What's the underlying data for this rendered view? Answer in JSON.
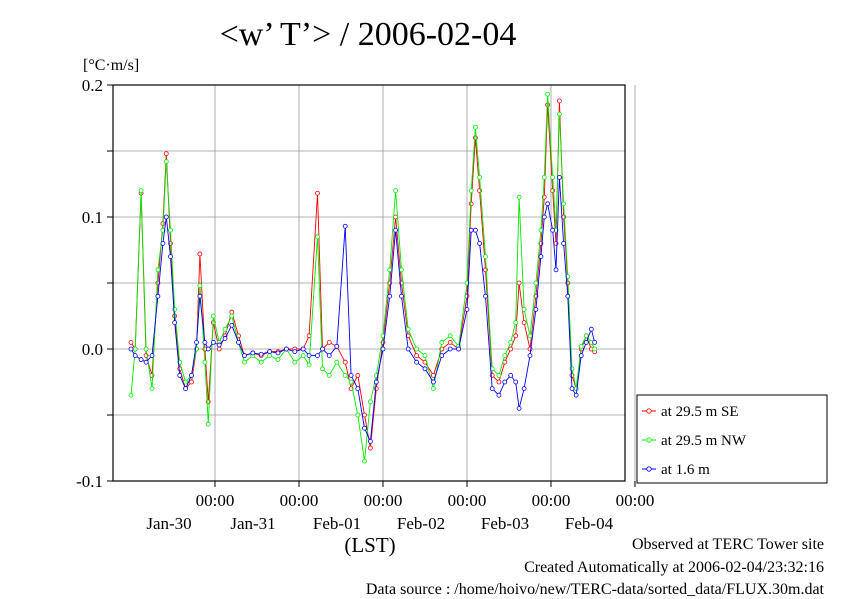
{
  "chart_data": {
    "type": "line",
    "title": "<w’ T’> / 2006-02-04",
    "unit": "[°C·m/s]",
    "xlabel": "(LST)",
    "ylim": [
      -0.1,
      0.2
    ],
    "y_ticks": [
      {
        "value": 0.2,
        "label": "0.2"
      },
      {
        "value": 0.1,
        "label": "0.1"
      },
      {
        "value": 0.0,
        "label": "0.0"
      },
      {
        "value": -0.1,
        "label": "-0.1"
      }
    ],
    "x_range_days": [
      0,
      6.0
    ],
    "x_ticks": [
      {
        "day": 1,
        "time": "00:00",
        "date": "Jan-30"
      },
      {
        "day": 2,
        "time": "00:00",
        "date": "Jan-31"
      },
      {
        "day": 3,
        "time": "00:00",
        "date": "Feb-01"
      },
      {
        "day": 4,
        "time": "00:00",
        "date": "Feb-02"
      },
      {
        "day": 5,
        "time": "00:00",
        "date": "Feb-03"
      },
      {
        "day": 6,
        "time": "00:00",
        "date": "Feb-04"
      }
    ],
    "grid": true,
    "legend_position": "right",
    "series": [
      {
        "name": "at 29.5 m SE",
        "color": "#ff0000",
        "points": [
          [
            0.0,
            0.005
          ],
          [
            0.05,
            0.0
          ],
          [
            0.12,
            0.118
          ],
          [
            0.18,
            -0.005
          ],
          [
            0.25,
            -0.02
          ],
          [
            0.32,
            0.05
          ],
          [
            0.38,
            0.095
          ],
          [
            0.42,
            0.148
          ],
          [
            0.47,
            0.08
          ],
          [
            0.52,
            0.025
          ],
          [
            0.58,
            -0.015
          ],
          [
            0.65,
            -0.03
          ],
          [
            0.72,
            -0.025
          ],
          [
            0.78,
            0.0
          ],
          [
            0.82,
            0.072
          ],
          [
            0.88,
            0.0
          ],
          [
            0.92,
            -0.04
          ],
          [
            0.98,
            0.02
          ],
          [
            1.05,
            0.0
          ],
          [
            1.12,
            0.01
          ],
          [
            1.2,
            0.028
          ],
          [
            1.28,
            0.01
          ],
          [
            1.35,
            -0.005
          ],
          [
            1.45,
            -0.003
          ],
          [
            1.55,
            -0.005
          ],
          [
            1.65,
            -0.002
          ],
          [
            1.75,
            -0.002
          ],
          [
            1.85,
            0.0
          ],
          [
            1.95,
            0.0
          ],
          [
            2.05,
            0.0
          ],
          [
            2.12,
            0.01
          ],
          [
            2.22,
            0.118
          ],
          [
            2.28,
            0.0
          ],
          [
            2.36,
            0.005
          ],
          [
            2.45,
            0.002
          ],
          [
            2.55,
            -0.01
          ],
          [
            2.62,
            -0.03
          ],
          [
            2.7,
            -0.02
          ],
          [
            2.78,
            -0.05
          ],
          [
            2.85,
            -0.075
          ],
          [
            2.92,
            -0.03
          ],
          [
            3.0,
            0.005
          ],
          [
            3.08,
            0.05
          ],
          [
            3.15,
            0.1
          ],
          [
            3.22,
            0.05
          ],
          [
            3.3,
            0.01
          ],
          [
            3.4,
            -0.005
          ],
          [
            3.5,
            -0.01
          ],
          [
            3.6,
            -0.02
          ],
          [
            3.7,
            0.0
          ],
          [
            3.8,
            0.005
          ],
          [
            3.9,
            0.0
          ],
          [
            4.0,
            0.04
          ],
          [
            4.05,
            0.11
          ],
          [
            4.1,
            0.16
          ],
          [
            4.15,
            0.12
          ],
          [
            4.22,
            0.06
          ],
          [
            4.3,
            -0.02
          ],
          [
            4.38,
            -0.025
          ],
          [
            4.45,
            -0.01
          ],
          [
            4.52,
            0.0
          ],
          [
            4.58,
            0.01
          ],
          [
            4.62,
            0.05
          ],
          [
            4.68,
            0.02
          ],
          [
            4.75,
            0.0
          ],
          [
            4.82,
            0.04
          ],
          [
            4.88,
            0.08
          ],
          [
            4.92,
            0.115
          ],
          [
            4.96,
            0.185
          ],
          [
            5.02,
            0.12
          ],
          [
            5.06,
            0.08
          ],
          [
            5.1,
            0.188
          ],
          [
            5.15,
            0.1
          ],
          [
            5.2,
            0.05
          ],
          [
            5.25,
            -0.02
          ],
          [
            5.3,
            -0.03
          ],
          [
            5.36,
            0.0
          ],
          [
            5.42,
            0.01
          ],
          [
            5.48,
            0.0
          ],
          [
            5.52,
            -0.002
          ]
        ]
      },
      {
        "name": "at 29.5 m NW",
        "color": "#00ee00",
        "points": [
          [
            0.0,
            -0.035
          ],
          [
            0.05,
            0.0
          ],
          [
            0.12,
            0.12
          ],
          [
            0.18,
            0.0
          ],
          [
            0.25,
            -0.03
          ],
          [
            0.32,
            0.06
          ],
          [
            0.38,
            0.09
          ],
          [
            0.42,
            0.142
          ],
          [
            0.47,
            0.09
          ],
          [
            0.52,
            0.03
          ],
          [
            0.58,
            -0.01
          ],
          [
            0.65,
            -0.025
          ],
          [
            0.72,
            -0.02
          ],
          [
            0.78,
            0.0
          ],
          [
            0.82,
            0.048
          ],
          [
            0.88,
            -0.01
          ],
          [
            0.92,
            -0.057
          ],
          [
            0.98,
            0.025
          ],
          [
            1.05,
            0.005
          ],
          [
            1.12,
            0.015
          ],
          [
            1.2,
            0.025
          ],
          [
            1.28,
            0.005
          ],
          [
            1.35,
            -0.01
          ],
          [
            1.45,
            -0.005
          ],
          [
            1.55,
            -0.01
          ],
          [
            1.65,
            -0.005
          ],
          [
            1.75,
            -0.008
          ],
          [
            1.85,
            0.0
          ],
          [
            1.95,
            -0.01
          ],
          [
            2.05,
            -0.005
          ],
          [
            2.12,
            -0.012
          ],
          [
            2.22,
            0.085
          ],
          [
            2.28,
            -0.015
          ],
          [
            2.36,
            -0.02
          ],
          [
            2.45,
            -0.01
          ],
          [
            2.55,
            -0.02
          ],
          [
            2.62,
            -0.025
          ],
          [
            2.7,
            -0.05
          ],
          [
            2.78,
            -0.085
          ],
          [
            2.85,
            -0.04
          ],
          [
            2.92,
            -0.02
          ],
          [
            3.0,
            0.01
          ],
          [
            3.08,
            0.06
          ],
          [
            3.15,
            0.12
          ],
          [
            3.22,
            0.06
          ],
          [
            3.3,
            0.015
          ],
          [
            3.4,
            0.0
          ],
          [
            3.5,
            -0.005
          ],
          [
            3.6,
            -0.03
          ],
          [
            3.7,
            0.005
          ],
          [
            3.8,
            0.01
          ],
          [
            3.9,
            0.002
          ],
          [
            4.0,
            0.05
          ],
          [
            4.05,
            0.12
          ],
          [
            4.1,
            0.168
          ],
          [
            4.15,
            0.13
          ],
          [
            4.22,
            0.07
          ],
          [
            4.3,
            -0.015
          ],
          [
            4.38,
            -0.02
          ],
          [
            4.45,
            -0.005
          ],
          [
            4.52,
            0.005
          ],
          [
            4.58,
            0.02
          ],
          [
            4.62,
            0.115
          ],
          [
            4.68,
            0.03
          ],
          [
            4.75,
            0.01
          ],
          [
            4.82,
            0.05
          ],
          [
            4.88,
            0.09
          ],
          [
            4.92,
            0.13
          ],
          [
            4.96,
            0.193
          ],
          [
            5.02,
            0.13
          ],
          [
            5.06,
            0.09
          ],
          [
            5.1,
            0.178
          ],
          [
            5.15,
            0.11
          ],
          [
            5.2,
            0.055
          ],
          [
            5.25,
            -0.015
          ],
          [
            5.3,
            -0.03
          ],
          [
            5.36,
            0.002
          ],
          [
            5.42,
            0.01
          ],
          [
            5.48,
            0.005
          ],
          [
            5.52,
            0.0
          ]
        ]
      },
      {
        "name": "at 1.6 m",
        "color": "#0000ff",
        "points": [
          [
            0.0,
            0.0
          ],
          [
            0.05,
            -0.005
          ],
          [
            0.12,
            -0.008
          ],
          [
            0.18,
            -0.01
          ],
          [
            0.25,
            -0.005
          ],
          [
            0.32,
            0.04
          ],
          [
            0.38,
            0.08
          ],
          [
            0.42,
            0.1
          ],
          [
            0.47,
            0.07
          ],
          [
            0.52,
            0.02
          ],
          [
            0.58,
            -0.02
          ],
          [
            0.65,
            -0.03
          ],
          [
            0.72,
            -0.02
          ],
          [
            0.78,
            0.005
          ],
          [
            0.82,
            0.04
          ],
          [
            0.88,
            0.005
          ],
          [
            0.92,
            0.0
          ],
          [
            0.98,
            0.005
          ],
          [
            1.05,
            0.003
          ],
          [
            1.12,
            0.008
          ],
          [
            1.2,
            0.018
          ],
          [
            1.28,
            0.005
          ],
          [
            1.35,
            -0.005
          ],
          [
            1.45,
            -0.003
          ],
          [
            1.55,
            -0.004
          ],
          [
            1.65,
            -0.002
          ],
          [
            1.75,
            -0.003
          ],
          [
            1.85,
            0.0
          ],
          [
            1.95,
            -0.002
          ],
          [
            2.05,
            0.0
          ],
          [
            2.12,
            -0.005
          ],
          [
            2.22,
            -0.005
          ],
          [
            2.28,
            0.0
          ],
          [
            2.36,
            -0.005
          ],
          [
            2.45,
            0.002
          ],
          [
            2.55,
            0.093
          ],
          [
            2.62,
            -0.02
          ],
          [
            2.7,
            -0.03
          ],
          [
            2.78,
            -0.06
          ],
          [
            2.85,
            -0.07
          ],
          [
            2.92,
            -0.025
          ],
          [
            3.0,
            0.0
          ],
          [
            3.08,
            0.04
          ],
          [
            3.15,
            0.09
          ],
          [
            3.22,
            0.04
          ],
          [
            3.3,
            0.0
          ],
          [
            3.4,
            -0.01
          ],
          [
            3.5,
            -0.015
          ],
          [
            3.6,
            -0.025
          ],
          [
            3.7,
            -0.005
          ],
          [
            3.8,
            0.0
          ],
          [
            3.9,
            0.0
          ],
          [
            4.0,
            0.03
          ],
          [
            4.05,
            0.09
          ],
          [
            4.1,
            0.09
          ],
          [
            4.15,
            0.08
          ],
          [
            4.22,
            0.04
          ],
          [
            4.3,
            -0.03
          ],
          [
            4.38,
            -0.035
          ],
          [
            4.45,
            -0.025
          ],
          [
            4.52,
            -0.02
          ],
          [
            4.58,
            -0.025
          ],
          [
            4.62,
            -0.045
          ],
          [
            4.68,
            -0.03
          ],
          [
            4.75,
            -0.005
          ],
          [
            4.82,
            0.03
          ],
          [
            4.88,
            0.07
          ],
          [
            4.92,
            0.1
          ],
          [
            4.96,
            0.11
          ],
          [
            5.02,
            0.09
          ],
          [
            5.06,
            0.06
          ],
          [
            5.1,
            0.13
          ],
          [
            5.15,
            0.08
          ],
          [
            5.2,
            0.04
          ],
          [
            5.25,
            -0.03
          ],
          [
            5.3,
            -0.035
          ],
          [
            5.36,
            -0.005
          ],
          [
            5.42,
            0.005
          ],
          [
            5.48,
            0.015
          ],
          [
            5.52,
            0.005
          ]
        ]
      }
    ]
  },
  "footer": {
    "line1": "Observed at TERC Tower site",
    "line2": "Created Automatically at 2006-02-04/23:32:16",
    "line3": "Data source : /home/hoivo/new/TERC-data/sorted_data/FLUX.30m.dat"
  }
}
